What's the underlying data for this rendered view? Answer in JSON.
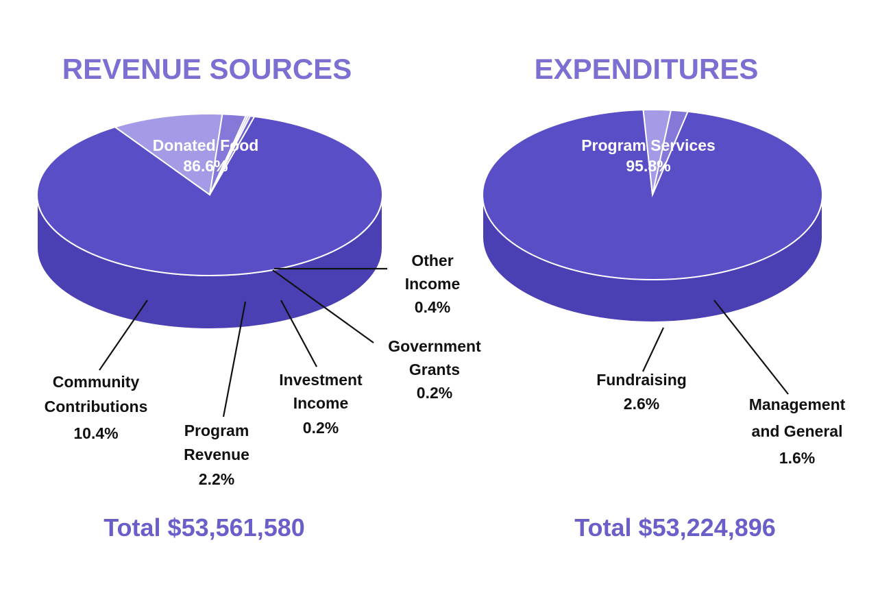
{
  "chart_data": [
    {
      "type": "pie",
      "title": "REVENUE SOURCES",
      "total": "Total $53,561,580",
      "slices": [
        {
          "name": "Donated Food",
          "value": 86.6,
          "label": "86.6%",
          "color": "#5a4ec6",
          "side": "#4a3fb3"
        },
        {
          "name": "Community Contributions",
          "value": 10.4,
          "label": "10.4%",
          "color": "#a49be6",
          "side": "#8479d8"
        },
        {
          "name": "Program Revenue",
          "value": 2.2,
          "label": "2.2%",
          "color": "#8479d8",
          "side": "#6f64cc"
        },
        {
          "name": "Investment Income",
          "value": 0.2,
          "label": "0.2%",
          "color": "#b4acec",
          "side": "#9a91e0"
        },
        {
          "name": "Government Grants",
          "value": 0.2,
          "label": "0.2%",
          "color": "#9d94e2",
          "side": "#857bd6"
        },
        {
          "name": "Other Income",
          "value": 0.4,
          "label": "0.4%",
          "color": "#6b5fce",
          "side": "#5a4ec6"
        }
      ]
    },
    {
      "type": "pie",
      "title": "EXPENDITURES",
      "total": "Total $53,224,896",
      "slices": [
        {
          "name": "Program Services",
          "value": 95.8,
          "label": "95.8%",
          "color": "#5a4ec6",
          "side": "#4a3fb3"
        },
        {
          "name": "Fundraising",
          "value": 2.6,
          "label": "2.6%",
          "color": "#a49be6",
          "side": "#8a80da"
        },
        {
          "name": "Management and General",
          "value": 1.6,
          "label": "1.6%",
          "color": "#8479d8",
          "side": "#6f64cc"
        }
      ]
    }
  ],
  "labels": {
    "rev": {
      "donated_1": "Donated Food",
      "donated_2": "86.6%",
      "other_1": "Other",
      "other_2": "Income",
      "other_3": "0.4%",
      "gov_1": "Government",
      "gov_2": "Grants",
      "gov_3": "0.2%",
      "inv_1": "Investment",
      "inv_2": "Income",
      "inv_3": "0.2%",
      "comm_1": "Community",
      "comm_2": "Contributions",
      "comm_3": "10.4%",
      "prog_1": "Program",
      "prog_2": "Revenue",
      "prog_3": "2.2%"
    },
    "exp": {
      "ps_1": "Program Services",
      "ps_2": "95.8%",
      "fund_1": "Fundraising",
      "fund_2": "2.6%",
      "mg_1": "Management",
      "mg_2": "and General",
      "mg_3": "1.6%"
    }
  }
}
